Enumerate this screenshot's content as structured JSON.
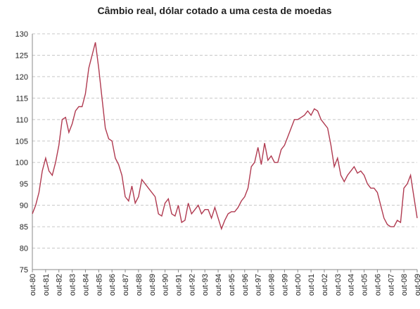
{
  "chart_data": {
    "type": "line",
    "title": "Câmbio real, dólar cotado a uma cesta de moedas",
    "x": [
      0,
      3,
      6,
      9,
      12,
      15,
      18,
      21,
      24,
      27,
      30,
      33,
      36,
      39,
      42,
      45,
      48,
      51,
      54,
      57,
      60,
      63,
      66,
      69,
      72,
      75,
      78,
      81,
      84,
      87,
      90,
      93,
      96,
      99,
      102,
      105,
      108,
      111,
      114,
      117,
      120,
      123,
      126,
      129,
      132,
      135,
      138,
      141,
      144,
      147,
      150,
      153,
      156,
      159,
      162,
      165,
      168,
      171,
      174,
      177,
      180,
      183,
      186,
      189,
      192,
      195,
      198,
      201,
      204,
      207,
      210,
      213,
      216,
      219,
      222,
      225,
      228,
      231,
      234,
      237,
      240,
      243,
      246,
      249,
      252,
      255,
      258,
      261,
      264,
      267,
      270,
      273,
      276,
      279,
      282,
      285,
      288,
      291,
      294,
      297,
      300,
      303,
      306,
      309,
      312,
      315,
      318,
      321,
      324,
      327,
      330,
      333,
      336,
      339,
      342,
      345,
      348
    ],
    "series": [
      {
        "color": "#b03a50",
        "values": [
          88,
          90,
          93,
          98,
          101,
          98,
          97,
          100,
          104,
          110,
          110.5,
          107,
          109,
          112,
          113,
          113,
          116,
          122,
          125,
          128,
          122,
          115,
          108,
          105.5,
          105,
          101,
          99.5,
          97,
          92,
          91,
          94.5,
          90.5,
          92,
          96,
          95,
          94,
          93,
          92,
          88,
          87.5,
          90.5,
          91.5,
          88,
          87.5,
          90,
          86,
          86.5,
          90.5,
          88,
          89,
          90,
          88,
          89,
          89,
          87,
          89.5,
          87,
          84.5,
          86.5,
          88,
          88.5,
          88.5,
          89.5,
          91,
          92,
          94,
          99,
          100,
          103.5,
          99.5,
          104.5,
          100.5,
          101.5,
          100,
          100,
          103,
          104,
          106,
          108,
          110,
          110,
          110.5,
          111,
          112,
          111,
          112.5,
          112,
          110,
          109,
          108,
          104,
          99,
          101,
          97,
          95.5,
          97,
          98,
          99,
          97.5,
          98,
          97,
          95,
          94,
          94,
          93,
          90,
          87,
          85.5,
          85,
          85,
          86.5,
          86,
          94,
          95,
          97,
          92,
          87
        ]
      }
    ],
    "xlim": [
      0,
      348
    ],
    "xticks": [
      {
        "value": 0,
        "label": "out-80"
      },
      {
        "value": 12,
        "label": "out-81"
      },
      {
        "value": 24,
        "label": "out-82"
      },
      {
        "value": 36,
        "label": "out-83"
      },
      {
        "value": 48,
        "label": "out-84"
      },
      {
        "value": 60,
        "label": "out-85"
      },
      {
        "value": 72,
        "label": "out-86"
      },
      {
        "value": 84,
        "label": "out-87"
      },
      {
        "value": 96,
        "label": "out-88"
      },
      {
        "value": 108,
        "label": "out-89"
      },
      {
        "value": 120,
        "label": "out-90"
      },
      {
        "value": 132,
        "label": "out-91"
      },
      {
        "value": 144,
        "label": "out-92"
      },
      {
        "value": 156,
        "label": "out-93"
      },
      {
        "value": 168,
        "label": "out-94"
      },
      {
        "value": 180,
        "label": "out-95"
      },
      {
        "value": 192,
        "label": "out-96"
      },
      {
        "value": 204,
        "label": "out-97"
      },
      {
        "value": 216,
        "label": "out-98"
      },
      {
        "value": 228,
        "label": "out-99"
      },
      {
        "value": 240,
        "label": "out-00"
      },
      {
        "value": 252,
        "label": "out-01"
      },
      {
        "value": 264,
        "label": "out-02"
      },
      {
        "value": 276,
        "label": "out-03"
      },
      {
        "value": 288,
        "label": "out-04"
      },
      {
        "value": 300,
        "label": "out-05"
      },
      {
        "value": 312,
        "label": "out-06"
      },
      {
        "value": 324,
        "label": "out-07"
      },
      {
        "value": 336,
        "label": "out-08"
      },
      {
        "value": 348,
        "label": "out-09"
      }
    ],
    "ylim": [
      75,
      130
    ],
    "yticks": [
      75,
      80,
      85,
      90,
      95,
      100,
      105,
      110,
      115,
      120,
      125,
      130
    ],
    "grid": true
  }
}
